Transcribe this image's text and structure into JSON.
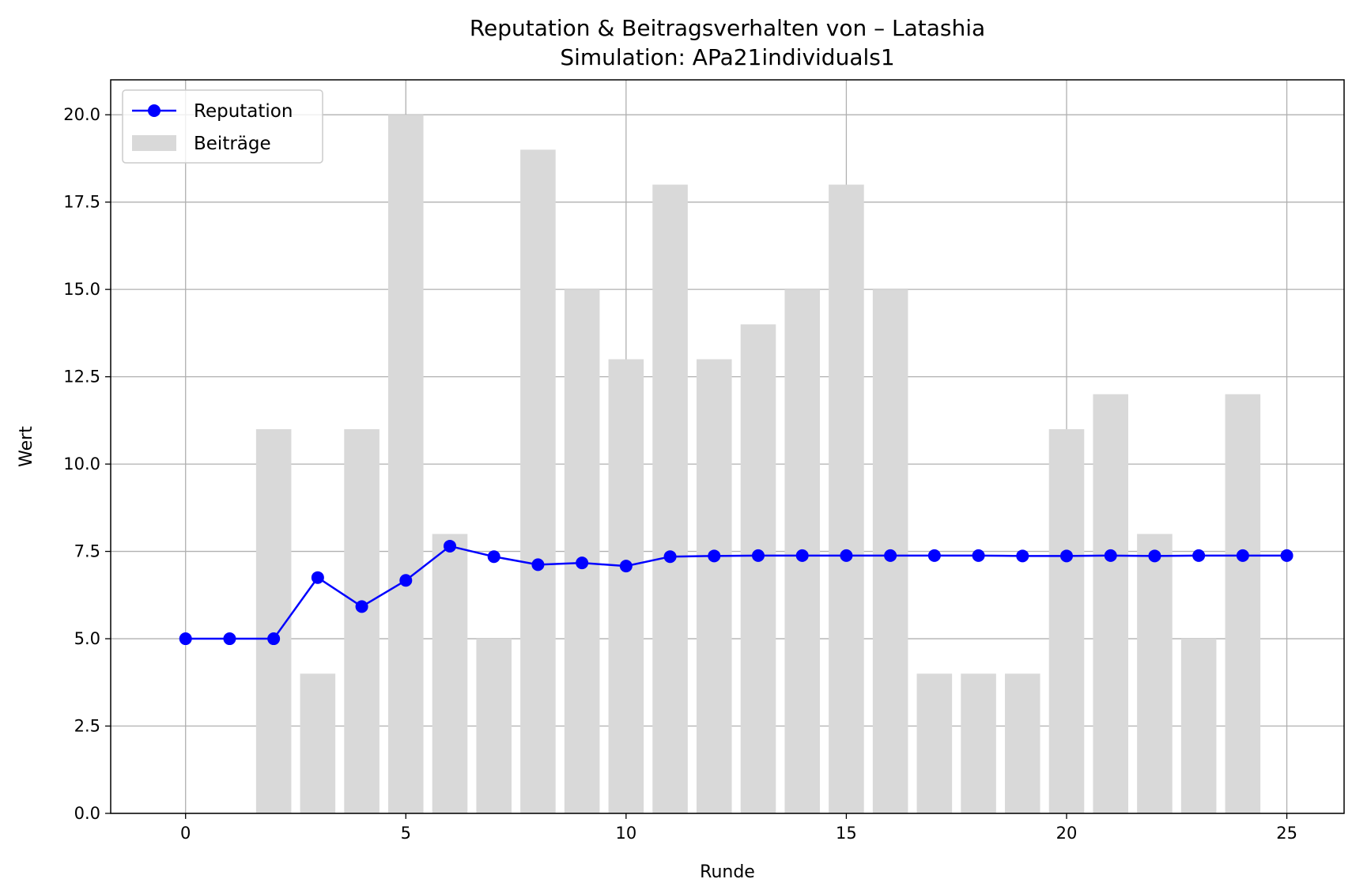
{
  "chart_data": {
    "type": "bar+line",
    "title": "Reputation & Beitragsverhalten von – Latashia",
    "subtitle": "Simulation: APa21individuals1",
    "xlabel": "Runde",
    "ylabel": "Wert",
    "xlim": [
      -1.7,
      26.3
    ],
    "ylim": [
      0,
      21
    ],
    "xticks": [
      0,
      5,
      10,
      15,
      20,
      25
    ],
    "xtick_labels": [
      "0",
      "5",
      "10",
      "15",
      "20",
      "25"
    ],
    "yticks": [
      0,
      2.5,
      5,
      7.5,
      10,
      12.5,
      15,
      17.5,
      20
    ],
    "ytick_labels": [
      "0.0",
      "2.5",
      "5.0",
      "7.5",
      "10.0",
      "12.5",
      "15.0",
      "17.5",
      "20.0"
    ],
    "grid": true,
    "legend_position": "top-left",
    "legend": [
      "Reputation",
      "Beiträge"
    ],
    "x": [
      0,
      1,
      2,
      3,
      4,
      5,
      6,
      7,
      8,
      9,
      10,
      11,
      12,
      13,
      14,
      15,
      16,
      17,
      18,
      19,
      20,
      21,
      22,
      23,
      24,
      25
    ],
    "series": [
      {
        "name": "Beiträge",
        "kind": "bar",
        "color": "#d9d9d9",
        "values": [
          0,
          0,
          11,
          4,
          11,
          20,
          8,
          5,
          19,
          15,
          13,
          18,
          13,
          14,
          15,
          18,
          15,
          4,
          4,
          4,
          11,
          12,
          8,
          5,
          12,
          0
        ]
      },
      {
        "name": "Reputation",
        "kind": "line",
        "color": "#0000ff",
        "marker": "circle",
        "values": [
          5.0,
          5.0,
          5.0,
          6.75,
          5.92,
          6.67,
          7.65,
          7.35,
          7.12,
          7.17,
          7.08,
          7.35,
          7.37,
          7.38,
          7.38,
          7.38,
          7.38,
          7.38,
          7.38,
          7.37,
          7.37,
          7.38,
          7.37,
          7.38,
          7.38,
          7.38
        ]
      }
    ]
  }
}
